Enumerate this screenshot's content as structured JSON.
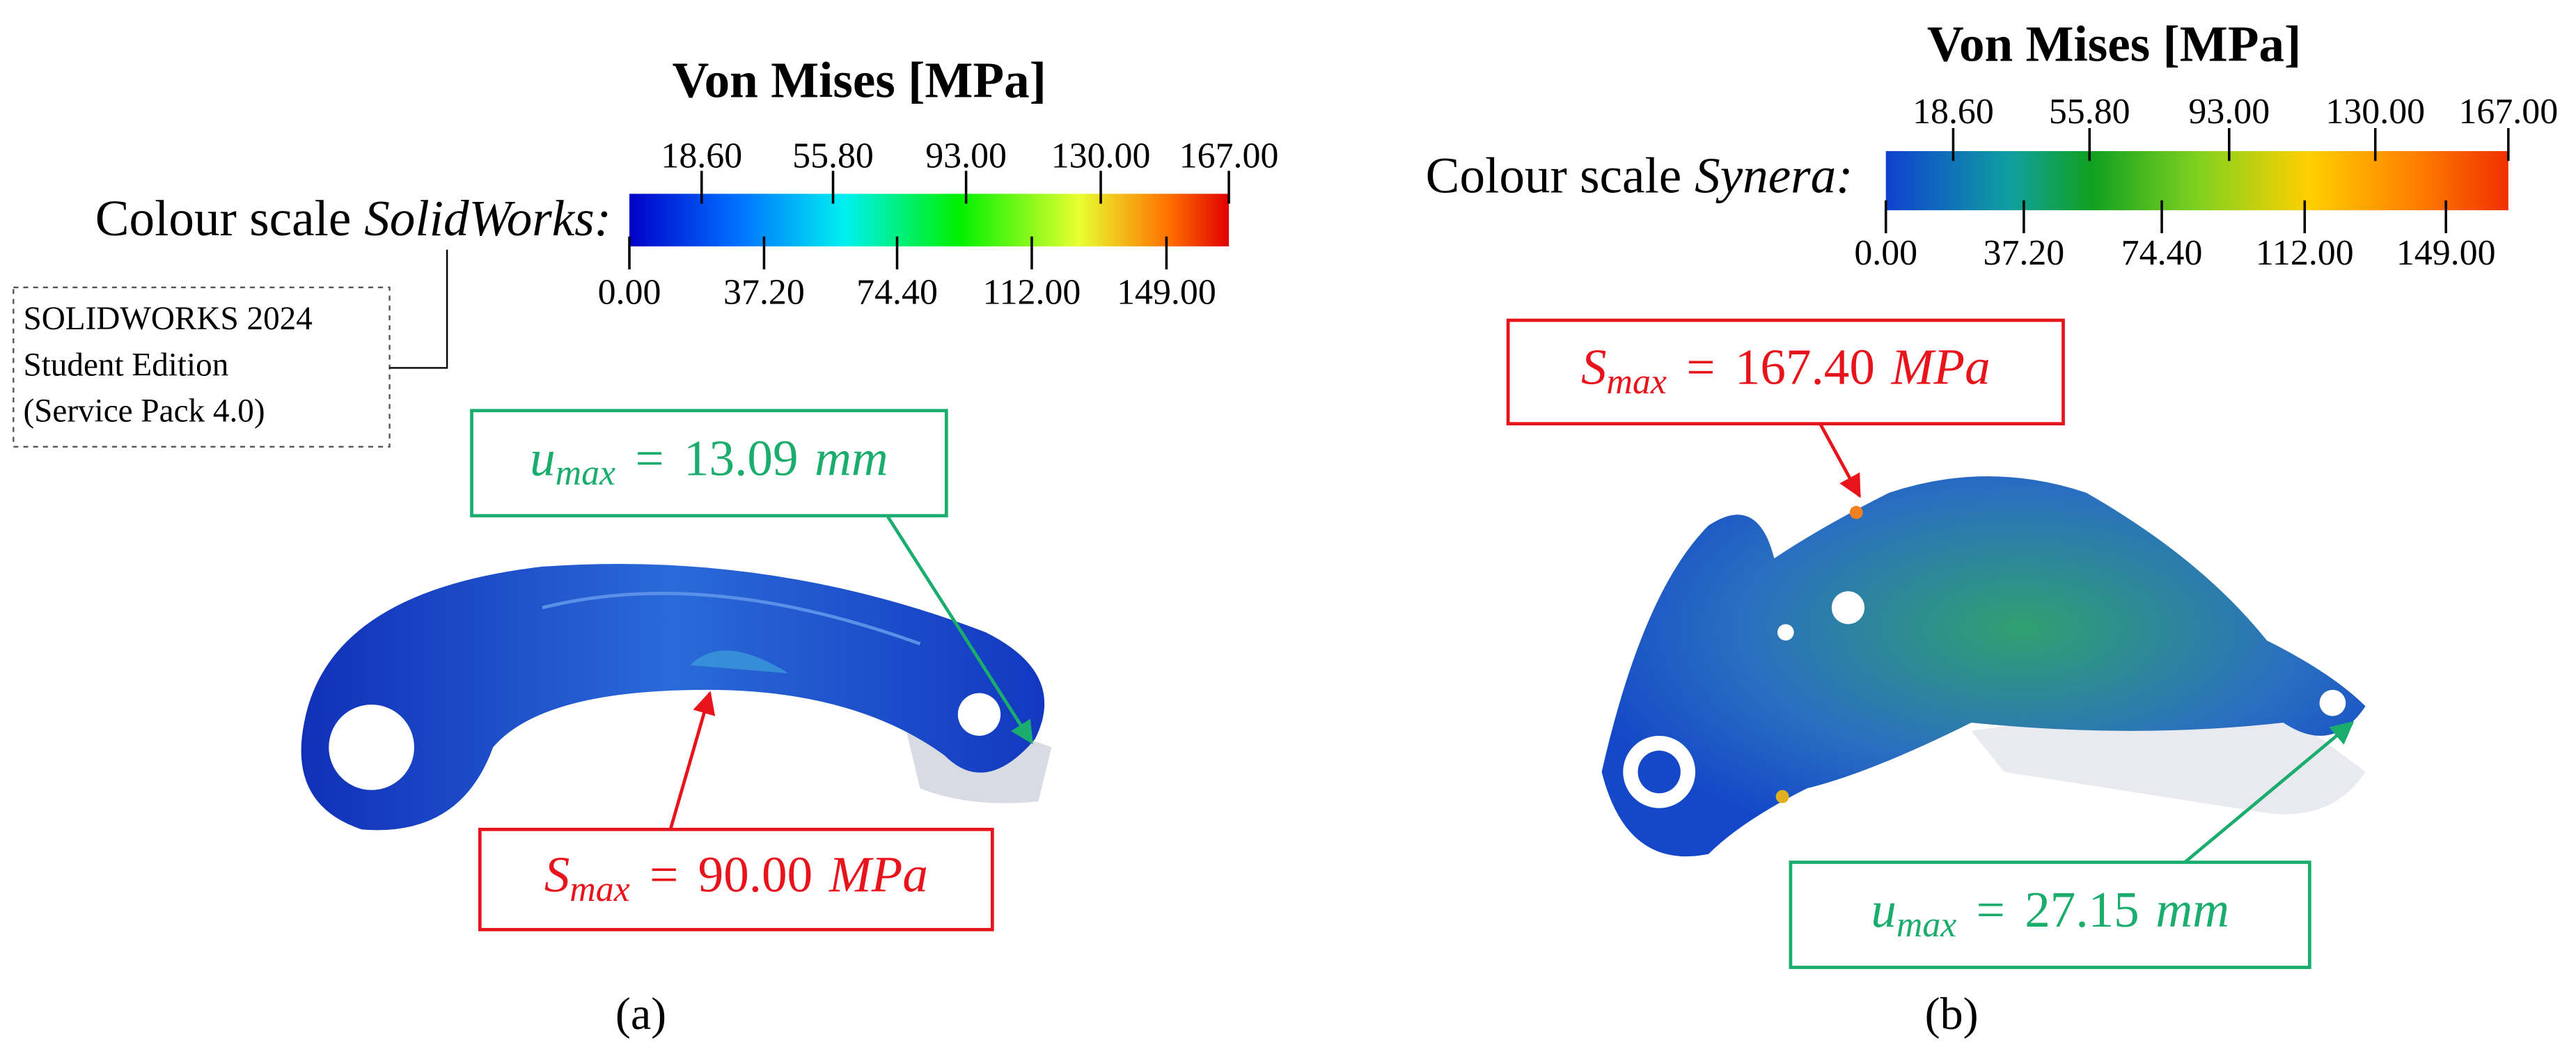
{
  "panels": [
    {
      "title": "Von Mises [MPa]",
      "scale_label": "Colour scale",
      "software": "SolidWorks:",
      "top_ticks": [
        "18.60",
        "55.80",
        "93.00",
        "130.00",
        "167.00"
      ],
      "bottom_ticks": [
        "0.00",
        "37.20",
        "74.40",
        "112.00",
        "149.00"
      ],
      "note": [
        "SOLIDWORKS 2024",
        "Student Edition",
        "(Service Pack 4.0)"
      ],
      "displacement": {
        "symbol": "u",
        "subscript": "max",
        "equals": "=",
        "value": "13.09",
        "unit": "mm"
      },
      "stress": {
        "symbol": "S",
        "subscript": "max",
        "equals": "=",
        "value": "90.00",
        "unit": "MPa"
      },
      "caption": "(a)"
    },
    {
      "title": "Von Mises [MPa]",
      "scale_label": "Colour scale",
      "software": "Synera:",
      "top_ticks": [
        "18.60",
        "55.80",
        "93.00",
        "130.00",
        "167.00"
      ],
      "bottom_ticks": [
        "0.00",
        "37.20",
        "74.40",
        "112.00",
        "149.00"
      ],
      "stress": {
        "symbol": "S",
        "subscript": "max",
        "equals": "=",
        "value": "167.40",
        "unit": "MPa"
      },
      "displacement": {
        "symbol": "u",
        "subscript": "max",
        "equals": "=",
        "value": "27.15",
        "unit": "mm"
      },
      "caption": "(b)"
    }
  ]
}
